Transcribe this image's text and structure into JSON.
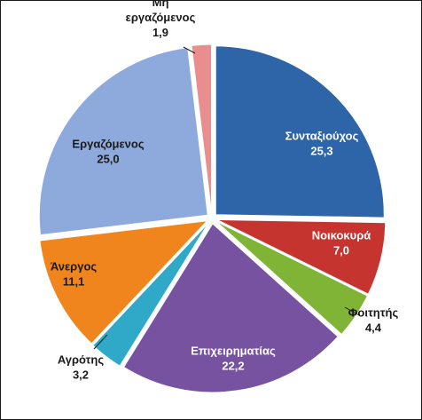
{
  "chart_data": {
    "type": "pie",
    "title": "",
    "slices": [
      {
        "label": "Συνταξιούχος",
        "value_label": "25,3",
        "value": 25.3,
        "color": "#2e64a8",
        "label_color": "#ffffff"
      },
      {
        "label": "Νοικοκυρά",
        "value_label": "7,0",
        "value": 7.0,
        "color": "#c6342f",
        "label_color": "#ffffff"
      },
      {
        "label": "Φοιτητής",
        "value_label": "4,4",
        "value": 4.4,
        "color": "#7fb437",
        "label_color": "#1a1a1a"
      },
      {
        "label": "Επιχειρηματίας",
        "value_label": "22,2",
        "value": 22.2,
        "color": "#7752a0",
        "label_color": "#ffffff"
      },
      {
        "label": "Αγρότης",
        "value_label": "3,2",
        "value": 3.2,
        "color": "#2fa9c7",
        "label_color": "#1a1a1a"
      },
      {
        "label": "Άνεργος",
        "value_label": "11,1",
        "value": 11.1,
        "color": "#f0851e",
        "label_color": "#1a1a1a"
      },
      {
        "label": "Εργαζόμενος",
        "value_label": "25,0",
        "value": 25.0,
        "color": "#8eaadd",
        "label_color": "#1a1a1a"
      },
      {
        "label": "Μη εργαζόμενος",
        "label_lines": [
          "Μη",
          "εργαζόμενος"
        ],
        "value_label": "1,9",
        "value": 1.9,
        "color": "#e88e8e",
        "label_color": "#1a1a1a"
      }
    ]
  }
}
